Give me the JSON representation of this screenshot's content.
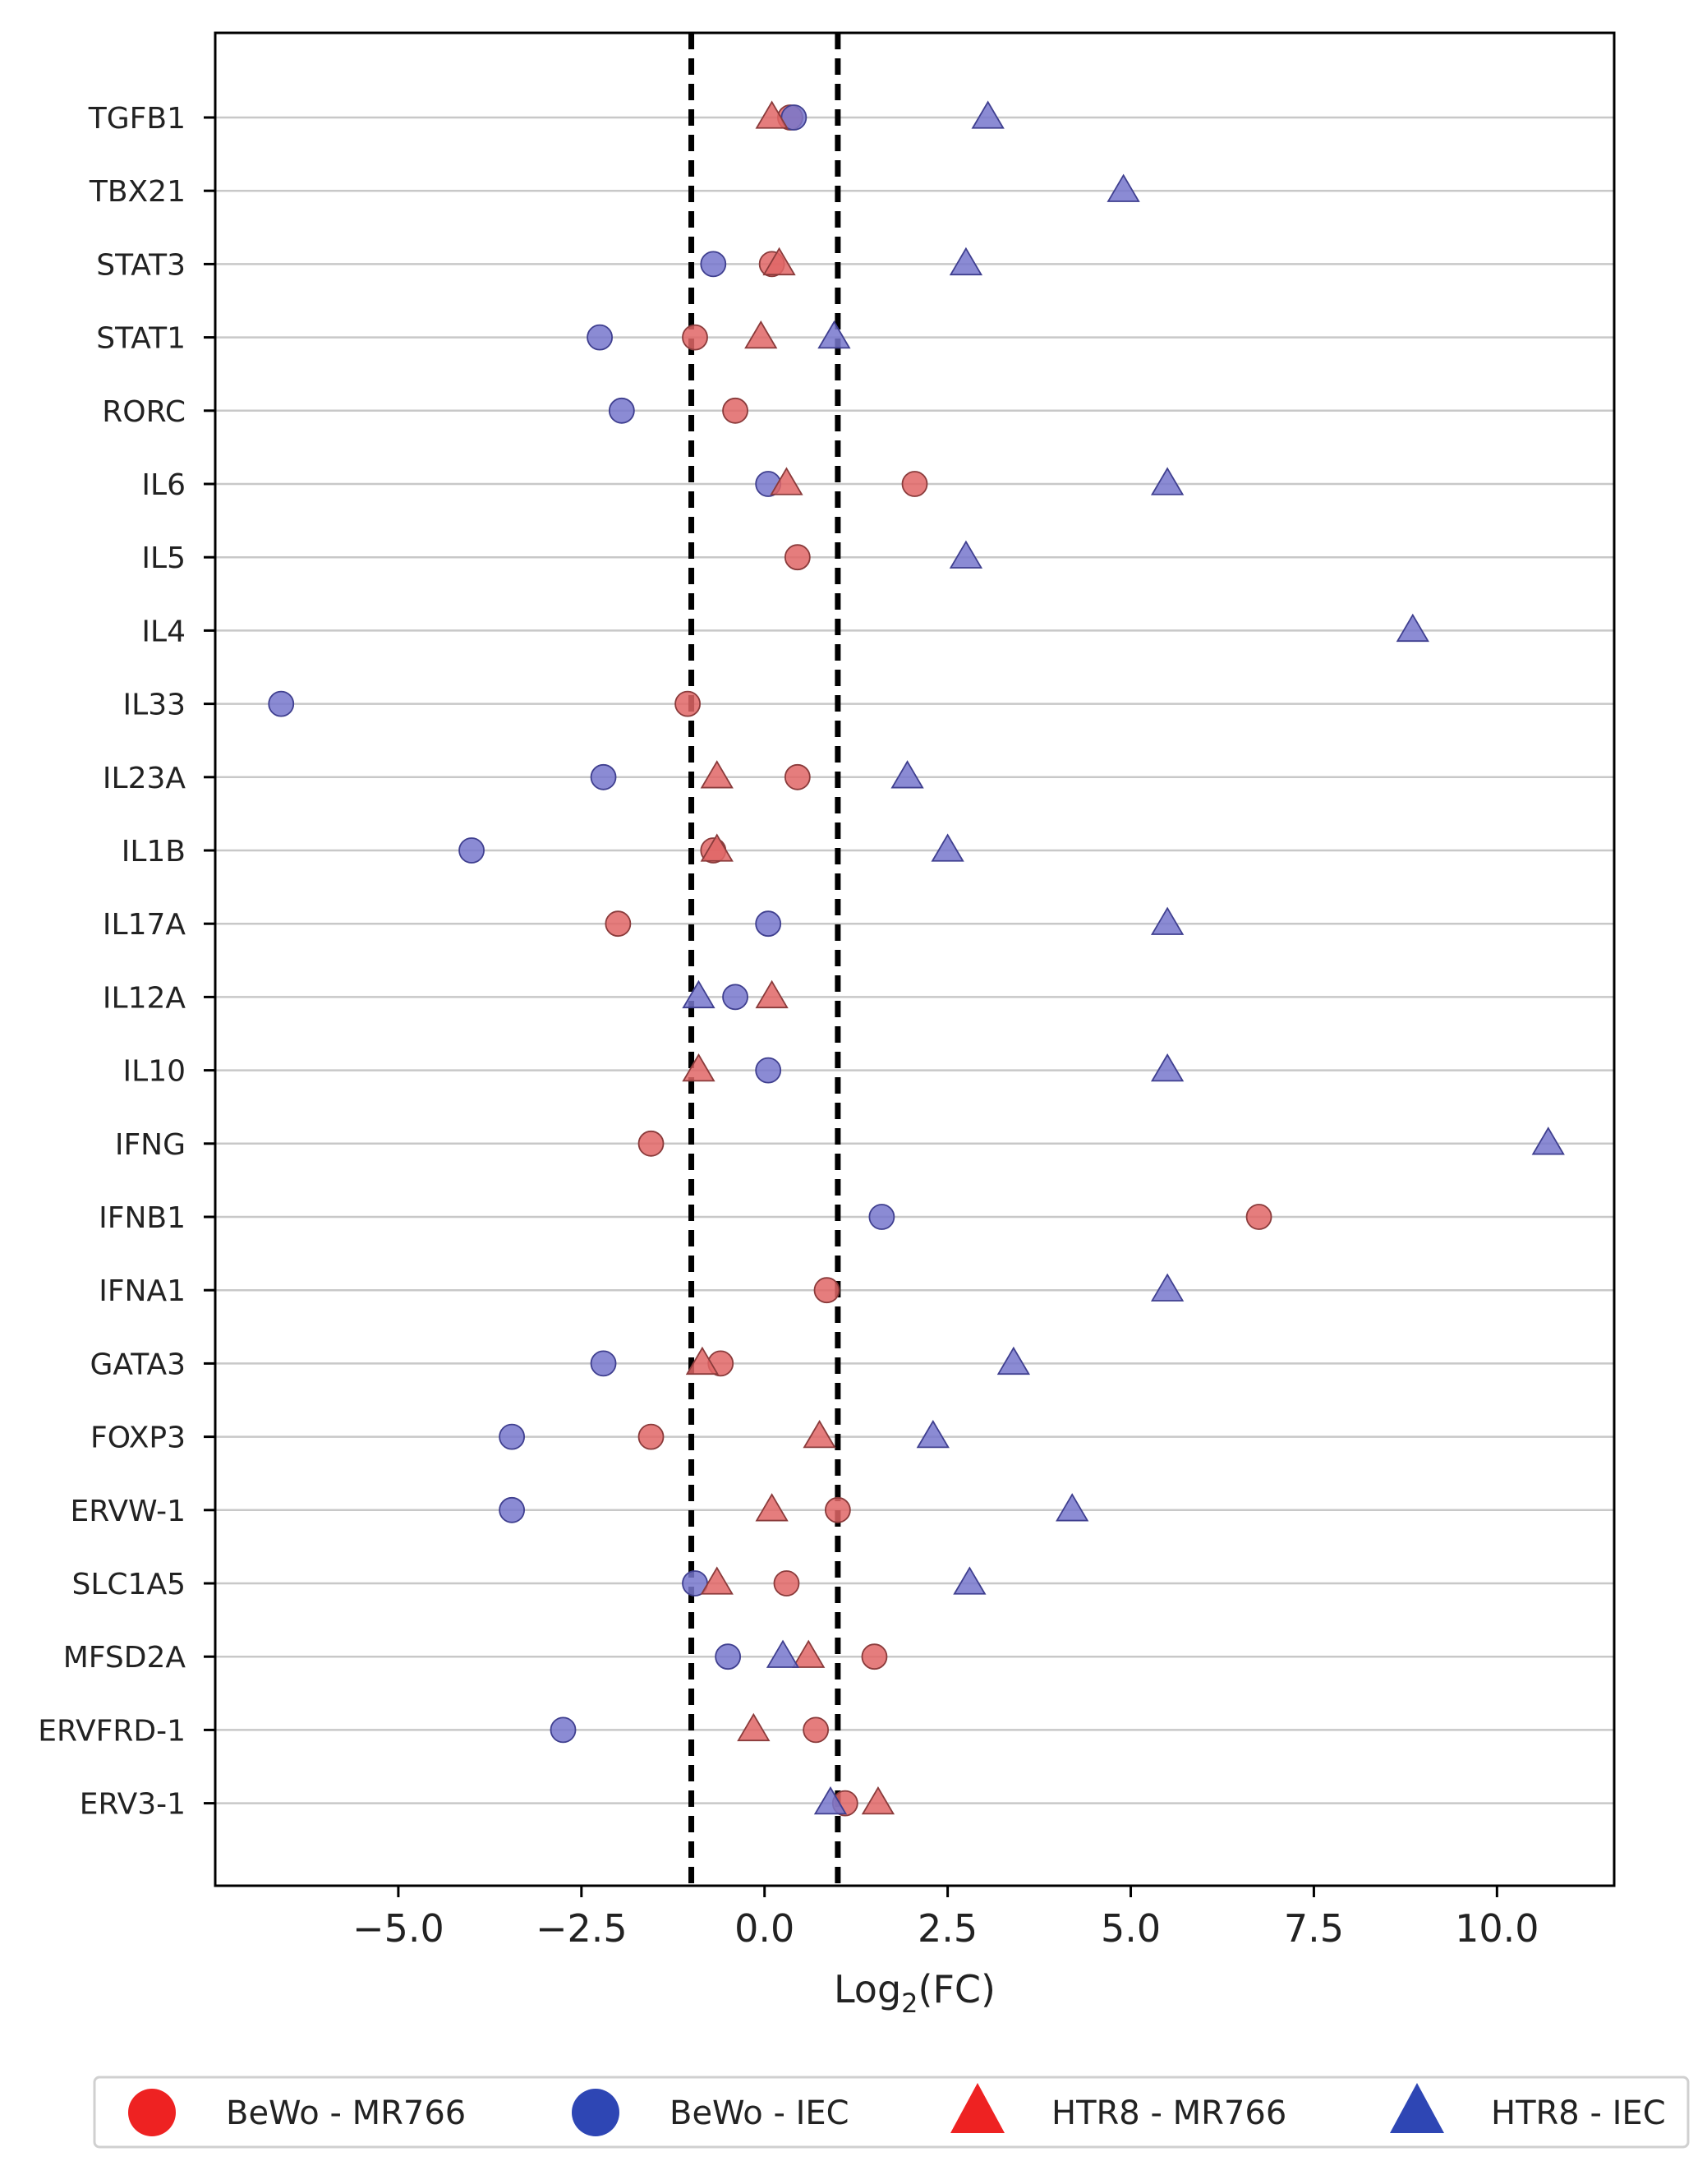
{
  "chart_data": {
    "type": "scatter",
    "title": "",
    "xlabel": "Log2(FC)",
    "xlabel_main": "Log",
    "xlabel_sub": "2",
    "xlabel_tail": "(FC)",
    "ylabel": "",
    "xlim": [
      -7.5,
      11.6
    ],
    "xticks": [
      -5.0,
      -2.5,
      0.0,
      2.5,
      5.0,
      7.5,
      10.0
    ],
    "xtick_labels": [
      "−5.0",
      "−2.5",
      "0.0",
      "2.5",
      "5.0",
      "7.5",
      "10.0"
    ],
    "threshold_lines": [
      -1,
      1
    ],
    "grid": "horizontal",
    "legend_position": "bottom",
    "categories": [
      "TGFB1",
      "TBX21",
      "STAT3",
      "STAT1",
      "RORC",
      "IL6",
      "IL5",
      "IL4",
      "IL33",
      "IL23A",
      "IL1B",
      "IL17A",
      "IL12A",
      "IL10",
      "IFNG",
      "IFNB1",
      "IFNA1",
      "GATA3",
      "FOXP3",
      "ERVW-1",
      "SLC1A5",
      "MFSD2A",
      "ERVFRD-1",
      "ERV3-1"
    ],
    "series": [
      {
        "name": "BeWo - MR766",
        "marker": "circle",
        "color": "#e06666",
        "edge": "#8a3b3b",
        "legend_color": "#ee2222",
        "values": [
          0.35,
          null,
          0.1,
          -0.95,
          -0.4,
          2.05,
          0.45,
          null,
          -1.05,
          0.45,
          -0.7,
          -2.0,
          null,
          null,
          -1.55,
          6.75,
          0.85,
          -0.6,
          -1.55,
          1.0,
          0.3,
          1.5,
          0.7,
          1.1
        ]
      },
      {
        "name": "BeWo - IEC",
        "marker": "circle",
        "color": "#7777cc",
        "edge": "#3f3f8f",
        "legend_color": "#2e46b4",
        "values": [
          0.4,
          null,
          -0.7,
          -2.25,
          -1.95,
          0.05,
          null,
          null,
          -6.6,
          -2.2,
          -4.0,
          0.05,
          -0.4,
          0.05,
          null,
          1.6,
          null,
          -2.2,
          -3.45,
          -3.45,
          -0.95,
          -0.5,
          -2.75,
          null
        ]
      },
      {
        "name": "HTR8 - MR766",
        "marker": "triangle",
        "color": "#e06666",
        "edge": "#8a3b3b",
        "legend_color": "#ee2222",
        "values": [
          0.1,
          null,
          0.2,
          -0.05,
          null,
          0.3,
          null,
          null,
          null,
          -0.65,
          -0.65,
          null,
          0.1,
          -0.9,
          null,
          null,
          null,
          -0.85,
          0.75,
          0.1,
          -0.65,
          0.6,
          -0.15,
          1.55
        ]
      },
      {
        "name": "HTR8 - IEC",
        "marker": "triangle",
        "color": "#7777cc",
        "edge": "#3f3f8f",
        "legend_color": "#2e46b4",
        "values": [
          3.05,
          4.9,
          2.75,
          0.95,
          null,
          5.5,
          2.75,
          8.85,
          null,
          1.95,
          2.5,
          5.5,
          -0.9,
          5.5,
          10.7,
          null,
          5.5,
          3.4,
          2.3,
          4.2,
          2.8,
          0.25,
          null,
          0.9
        ]
      }
    ]
  }
}
